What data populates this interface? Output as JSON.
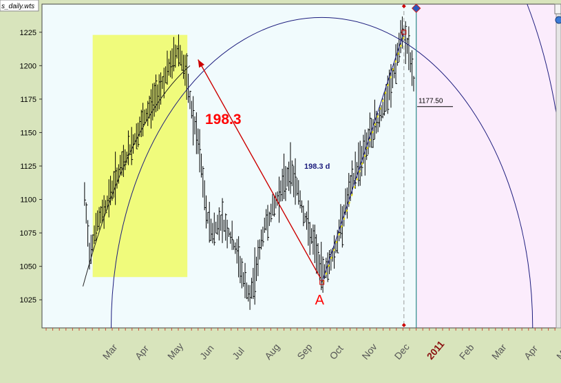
{
  "window": {
    "file_label": "s_daily.wts"
  },
  "chart_data": {
    "type": "bar",
    "subtype": "ohlc-price-chart",
    "ylim": [
      1004,
      1246
    ],
    "y_ticks": [
      1025,
      1050,
      1075,
      1100,
      1125,
      1150,
      1175,
      1200,
      1225
    ],
    "x_axis_labels": [
      {
        "label": "Mar",
        "month_index": 2.2,
        "emphasis": false
      },
      {
        "label": "Apr",
        "month_index": 3.2,
        "emphasis": false
      },
      {
        "label": "May",
        "month_index": 4.2,
        "emphasis": false
      },
      {
        "label": "Jun",
        "month_index": 5.2,
        "emphasis": false
      },
      {
        "label": "Jul",
        "month_index": 6.2,
        "emphasis": false
      },
      {
        "label": "Aug",
        "month_index": 7.2,
        "emphasis": false
      },
      {
        "label": "Sep",
        "month_index": 8.2,
        "emphasis": false
      },
      {
        "label": "Oct",
        "month_index": 9.2,
        "emphasis": false
      },
      {
        "label": "Nov",
        "month_index": 10.2,
        "emphasis": false
      },
      {
        "label": "Dec",
        "month_index": 11.2,
        "emphasis": false
      },
      {
        "label": "2011",
        "month_index": 12.2,
        "emphasis": true
      },
      {
        "label": "Feb",
        "month_index": 13.2,
        "emphasis": false
      },
      {
        "label": "Mar",
        "month_index": 14.2,
        "emphasis": false
      },
      {
        "label": "Apr",
        "month_index": 15.2,
        "emphasis": false
      },
      {
        "label": "May",
        "month_index": 16.2,
        "emphasis": false
      }
    ],
    "price_path": [
      [
        1.25,
        1102
      ],
      [
        1.4,
        1060
      ],
      [
        1.6,
        1080
      ],
      [
        1.9,
        1095
      ],
      [
        2.2,
        1115
      ],
      [
        2.6,
        1135
      ],
      [
        3.0,
        1155
      ],
      [
        3.4,
        1175
      ],
      [
        3.8,
        1195
      ],
      [
        4.15,
        1213
      ],
      [
        4.35,
        1195
      ],
      [
        4.6,
        1160
      ],
      [
        4.8,
        1135
      ],
      [
        5.0,
        1090
      ],
      [
        5.2,
        1075
      ],
      [
        5.45,
        1085
      ],
      [
        5.7,
        1075
      ],
      [
        5.95,
        1060
      ],
      [
        6.15,
        1040
      ],
      [
        6.35,
        1025
      ],
      [
        6.55,
        1050
      ],
      [
        6.8,
        1080
      ],
      [
        7.1,
        1095
      ],
      [
        7.35,
        1110
      ],
      [
        7.6,
        1122
      ],
      [
        7.8,
        1110
      ],
      [
        8.0,
        1090
      ],
      [
        8.2,
        1075
      ],
      [
        8.4,
        1060
      ],
      [
        8.55,
        1045
      ],
      [
        8.75,
        1050
      ],
      [
        9.0,
        1065
      ],
      [
        9.3,
        1095
      ],
      [
        9.6,
        1120
      ],
      [
        9.9,
        1138
      ],
      [
        10.2,
        1155
      ],
      [
        10.5,
        1170
      ],
      [
        10.75,
        1190
      ],
      [
        10.95,
        1213
      ],
      [
        11.1,
        1225
      ],
      [
        11.25,
        1210
      ],
      [
        11.45,
        1180
      ]
    ],
    "highlight_zone": {
      "x_start": 1.5,
      "x_end": 4.42,
      "y_low": 1042,
      "y_high": 1223,
      "color": "#f0fb7c"
    },
    "future_zone": {
      "x_start": 11.48,
      "color": "#fbecfc"
    },
    "plot_background": "#f1fbfd",
    "arc_color": "#1a1a7c",
    "arc_center_x": 8.57,
    "arc_radius_months": 6.5,
    "arc_center_y": 1004,
    "arc_radius_price": 232,
    "pivot_a": {
      "x": 8.57,
      "y": 1038,
      "label": "A"
    },
    "pivot_b": {
      "x": 11.1,
      "y": 1225
    },
    "angle_annotation": {
      "x": 4.75,
      "y": 1220,
      "label": "198.3",
      "color": "#ff0000"
    },
    "days_annotation": {
      "label": "198.3 d",
      "color": "#1a1a7c"
    },
    "price_annotation": {
      "label": "1177.50",
      "x": 11.55,
      "y": 1172
    },
    "current_time_x": 11.48,
    "current_time_color": "#2a8a8a",
    "marker_color": "#cc0000",
    "diamond_color": "#2a5abf"
  }
}
